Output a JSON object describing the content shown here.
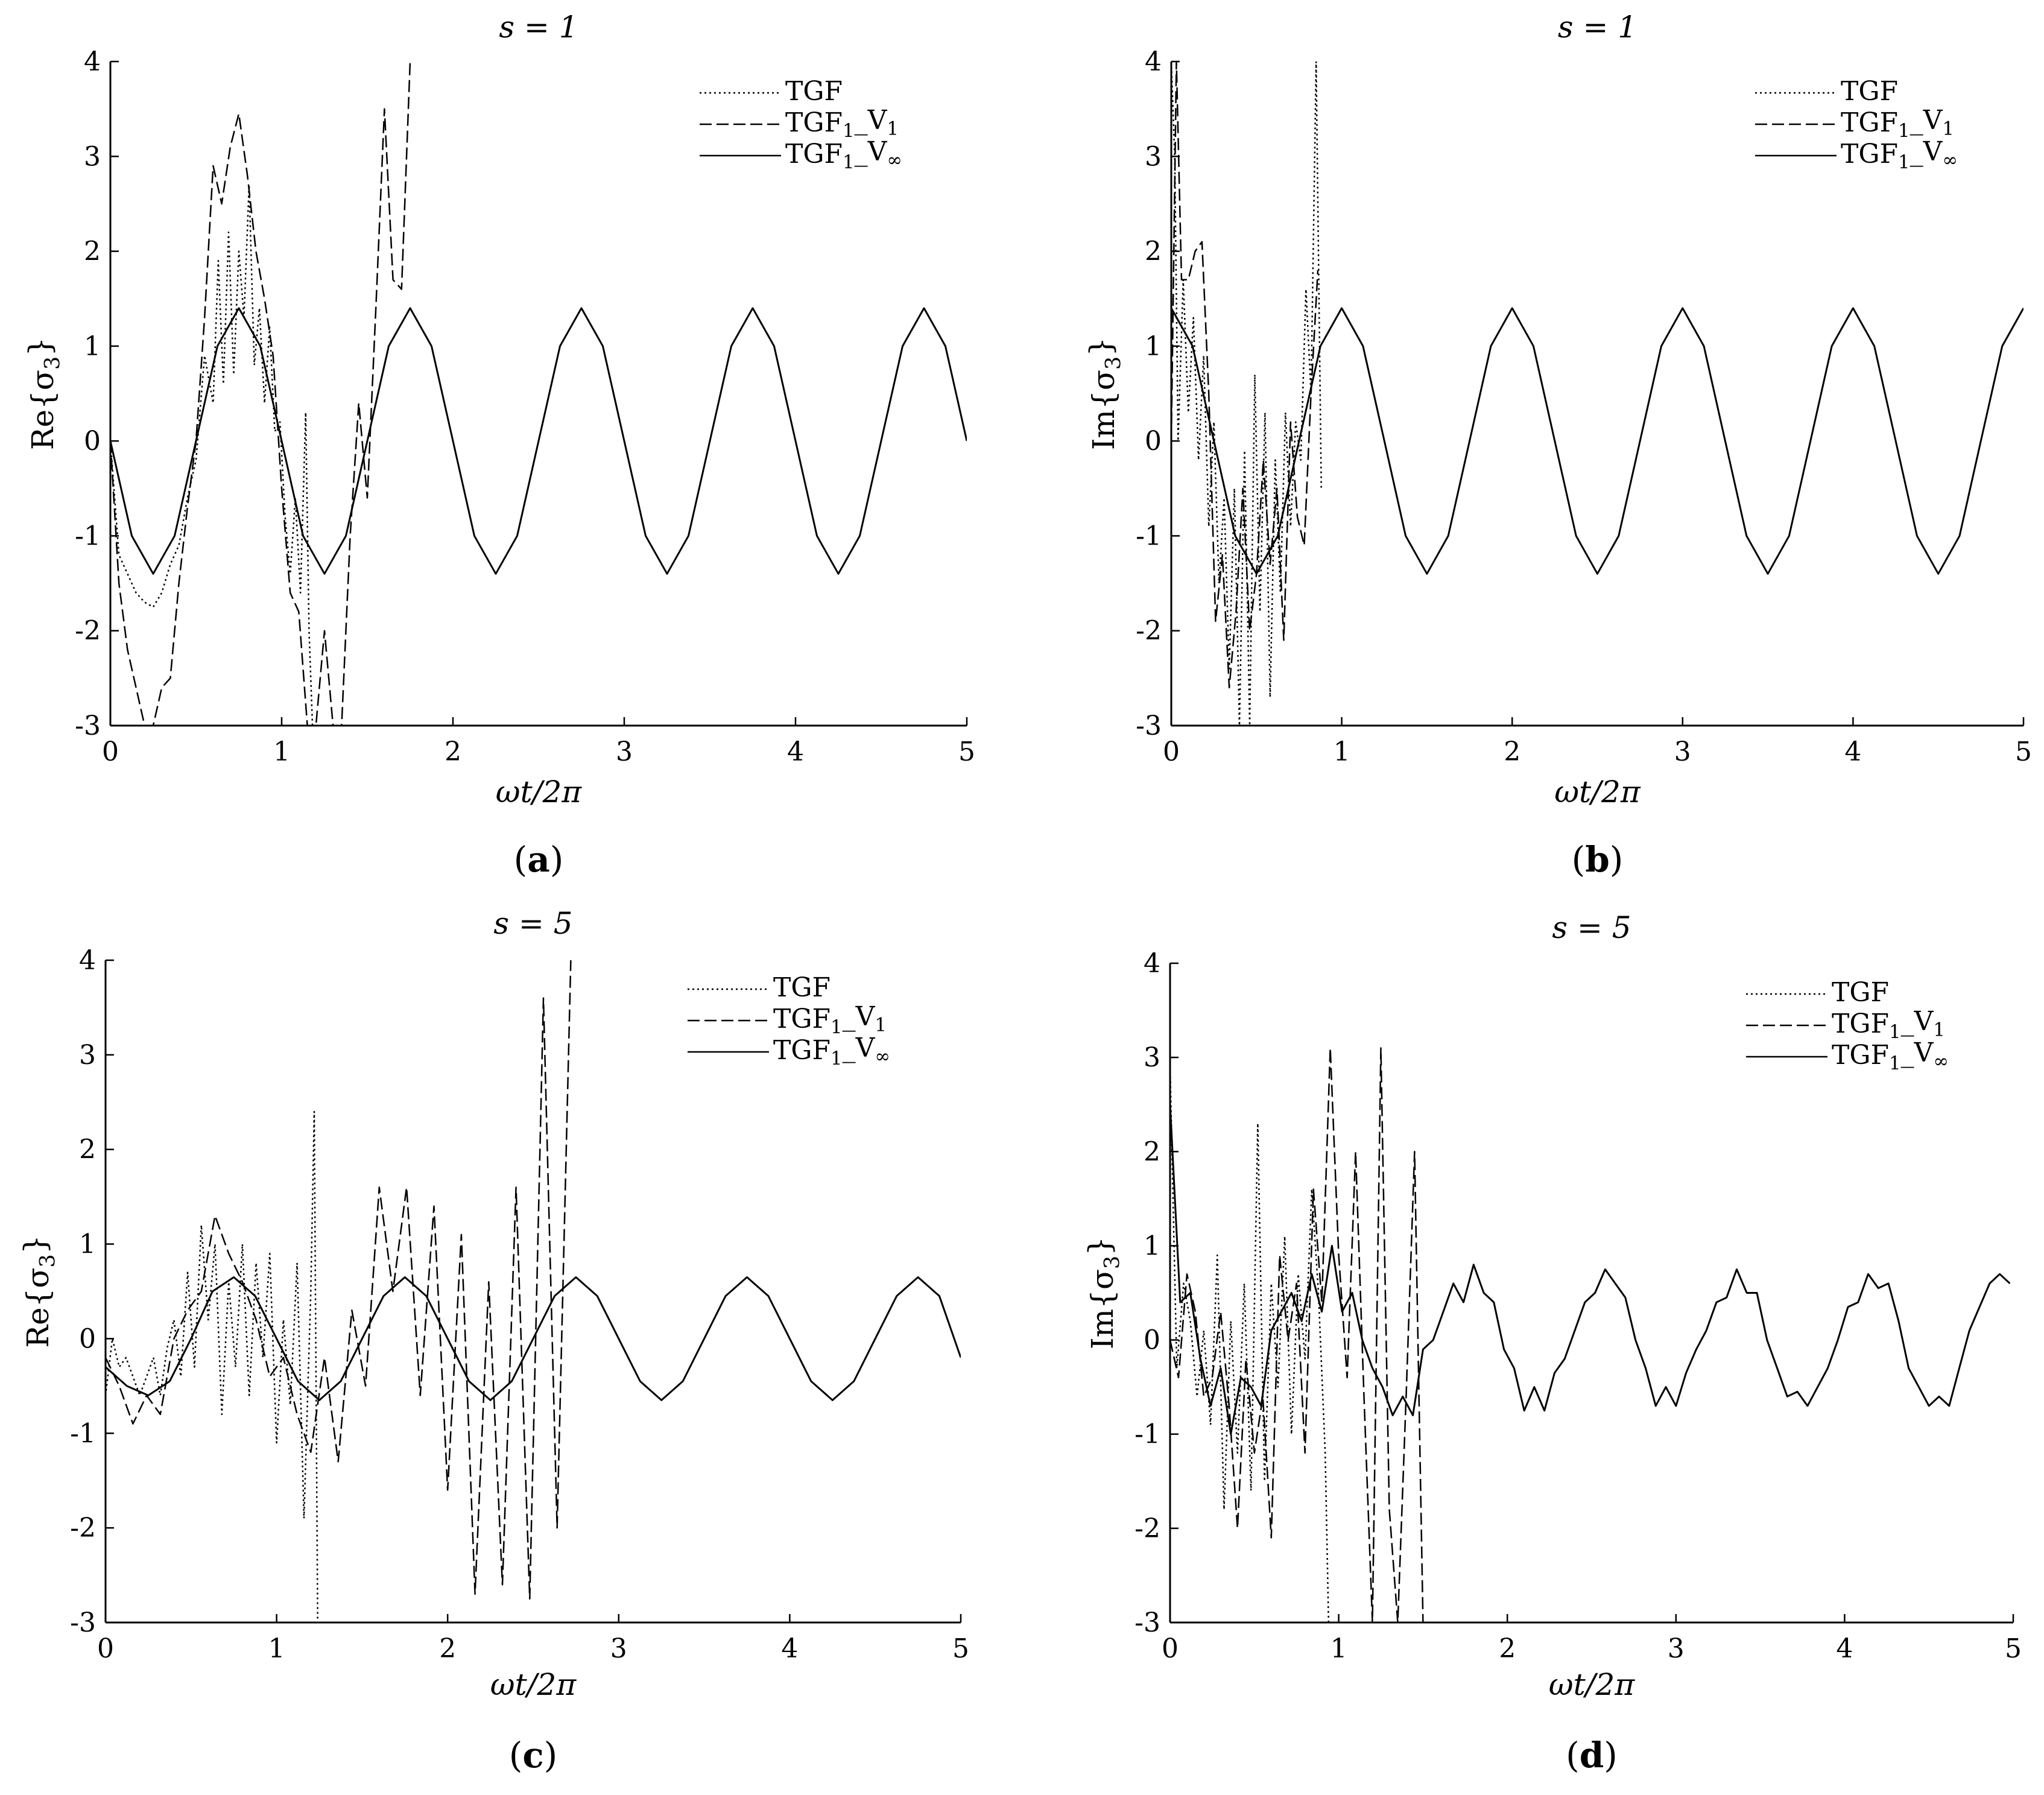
{
  "chart_data": [
    {
      "type": "line",
      "panel_label": "(a)",
      "panel_letter": "a",
      "title": "s = 1",
      "xlabel": "ωt/2π",
      "ylabel": "Re{σ3}",
      "xlim": [
        0,
        5
      ],
      "ylim": [
        -3,
        4
      ],
      "xticks": [
        "0",
        "1",
        "2",
        "3",
        "4",
        "5"
      ],
      "yticks": [
        "-3",
        "-2",
        "-1",
        "0",
        "1",
        "2",
        "3",
        "4"
      ],
      "legend_position": "top-right",
      "series": [
        {
          "name": "TGF",
          "style": "dotted",
          "x": [
            0.0,
            0.05,
            0.1,
            0.15,
            0.2,
            0.25,
            0.3,
            0.35,
            0.4,
            0.45,
            0.5,
            0.55,
            0.6,
            0.63,
            0.66,
            0.69,
            0.72,
            0.75,
            0.78,
            0.81,
            0.84,
            0.87,
            0.9,
            0.93,
            0.96,
            0.99,
            1.02,
            1.05,
            1.08,
            1.11,
            1.14,
            1.16,
            1.18
          ],
          "y": [
            0.0,
            -1.2,
            -1.4,
            -1.6,
            -1.7,
            -1.75,
            -1.6,
            -1.3,
            -1.1,
            -0.6,
            -0.2,
            0.9,
            0.4,
            1.9,
            0.6,
            2.2,
            0.7,
            2.0,
            1.3,
            2.7,
            0.8,
            1.4,
            0.4,
            1.2,
            0.1,
            0.2,
            -0.8,
            -1.4,
            -0.6,
            -1.6,
            0.3,
            -2.0,
            -3.0
          ]
        },
        {
          "name": "TGF1_V1",
          "style": "dashed",
          "x": [
            0.0,
            0.05,
            0.1,
            0.15,
            0.2,
            0.25,
            0.3,
            0.35,
            0.4,
            0.45,
            0.5,
            0.55,
            0.6,
            0.65,
            0.7,
            0.75,
            0.8,
            0.85,
            0.9,
            0.95,
            1.0,
            1.05,
            1.1,
            1.15,
            1.2,
            1.25,
            1.3,
            1.35,
            1.4,
            1.45,
            1.5,
            1.55,
            1.6,
            1.65,
            1.7,
            1.75
          ],
          "y": [
            0.0,
            -1.5,
            -2.2,
            -2.6,
            -3.0,
            -3.0,
            -2.6,
            -2.5,
            -1.5,
            -0.7,
            0.0,
            1.3,
            2.9,
            2.5,
            3.1,
            3.45,
            2.8,
            2.0,
            1.5,
            0.9,
            -0.5,
            -1.6,
            -1.8,
            -3.0,
            -3.0,
            -2.0,
            -3.0,
            -3.0,
            -1.0,
            0.4,
            -0.6,
            1.4,
            3.5,
            1.7,
            1.6,
            4.0
          ]
        },
        {
          "name": "TGF1_V∞",
          "style": "solid",
          "x": [
            0.0,
            0.125,
            0.25,
            0.375,
            0.5,
            0.625,
            0.75,
            0.875,
            1.0,
            1.125,
            1.25,
            1.375,
            1.5,
            1.625,
            1.75,
            1.875,
            2.0,
            2.125,
            2.25,
            2.375,
            2.5,
            2.625,
            2.75,
            2.875,
            3.0,
            3.125,
            3.25,
            3.375,
            3.5,
            3.625,
            3.75,
            3.875,
            4.0,
            4.125,
            4.25,
            4.375,
            4.5,
            4.625,
            4.75,
            4.875,
            5.0
          ],
          "y": [
            0.0,
            -1.0,
            -1.4,
            -1.0,
            0.0,
            1.0,
            1.4,
            1.0,
            0.0,
            -1.0,
            -1.4,
            -1.0,
            0.0,
            1.0,
            1.4,
            1.0,
            0.0,
            -1.0,
            -1.4,
            -1.0,
            0.0,
            1.0,
            1.4,
            1.0,
            0.0,
            -1.0,
            -1.4,
            -1.0,
            0.0,
            1.0,
            1.4,
            1.0,
            0.0,
            -1.0,
            -1.4,
            -1.0,
            0.0,
            1.0,
            1.4,
            1.0,
            0.0
          ]
        }
      ]
    },
    {
      "type": "line",
      "panel_label": "(b)",
      "panel_letter": "b",
      "title": "s = 1",
      "xlabel": "ωt/2π",
      "ylabel": "Im{σ3}",
      "xlim": [
        0,
        5
      ],
      "ylim": [
        -3,
        4
      ],
      "xticks": [
        "0",
        "1",
        "2",
        "3",
        "4",
        "5"
      ],
      "yticks": [
        "-3",
        "-2",
        "-1",
        "0",
        "1",
        "2",
        "3",
        "4"
      ],
      "legend_position": "top-right",
      "series": [
        {
          "name": "TGF",
          "style": "dotted",
          "x": [
            0.0,
            0.02,
            0.04,
            0.07,
            0.1,
            0.13,
            0.16,
            0.19,
            0.22,
            0.25,
            0.28,
            0.31,
            0.34,
            0.37,
            0.4,
            0.43,
            0.46,
            0.49,
            0.52,
            0.55,
            0.58,
            0.61,
            0.64,
            0.67,
            0.7,
            0.73,
            0.76,
            0.79,
            0.82,
            0.85,
            0.88
          ],
          "y": [
            4.0,
            3.0,
            0.0,
            1.7,
            0.3,
            1.3,
            -0.2,
            0.9,
            -0.9,
            0.2,
            -1.5,
            -0.6,
            -2.4,
            -0.5,
            -3.0,
            -0.1,
            -3.0,
            0.7,
            -1.8,
            0.3,
            -2.7,
            -0.2,
            -1.6,
            0.3,
            -0.9,
            0.2,
            -0.2,
            1.6,
            0.5,
            4.0,
            -0.5
          ]
        },
        {
          "name": "TGF1_V1",
          "style": "dashed",
          "x": [
            0.0,
            0.03,
            0.06,
            0.1,
            0.14,
            0.18,
            0.22,
            0.26,
            0.3,
            0.34,
            0.38,
            0.42,
            0.46,
            0.5,
            0.54,
            0.58,
            0.62,
            0.66,
            0.7,
            0.74,
            0.78,
            0.82,
            0.86
          ],
          "y": [
            0.0,
            4.0,
            1.7,
            1.7,
            2.0,
            2.1,
            0.5,
            -1.9,
            -1.2,
            -2.6,
            -1.8,
            -0.5,
            -2.0,
            -1.4,
            -0.2,
            -1.3,
            -0.5,
            -2.1,
            0.2,
            -0.8,
            -1.1,
            0.5,
            1.8
          ]
        },
        {
          "name": "TGF1_V∞",
          "style": "solid",
          "x": [
            0.0,
            0.125,
            0.25,
            0.375,
            0.5,
            0.625,
            0.75,
            0.875,
            1.0,
            1.125,
            1.25,
            1.375,
            1.5,
            1.625,
            1.75,
            1.875,
            2.0,
            2.125,
            2.25,
            2.375,
            2.5,
            2.625,
            2.75,
            2.875,
            3.0,
            3.125,
            3.25,
            3.375,
            3.5,
            3.625,
            3.75,
            3.875,
            4.0,
            4.125,
            4.25,
            4.375,
            4.5,
            4.625,
            4.75,
            4.875,
            5.0
          ],
          "y": [
            1.4,
            1.0,
            0.0,
            -1.0,
            -1.4,
            -1.0,
            0.0,
            1.0,
            1.4,
            1.0,
            0.0,
            -1.0,
            -1.4,
            -1.0,
            0.0,
            1.0,
            1.4,
            1.0,
            0.0,
            -1.0,
            -1.4,
            -1.0,
            0.0,
            1.0,
            1.4,
            1.0,
            0.0,
            -1.0,
            -1.4,
            -1.0,
            0.0,
            1.0,
            1.4,
            1.0,
            0.0,
            -1.0,
            -1.4,
            -1.0,
            0.0,
            1.0,
            1.4
          ]
        }
      ]
    },
    {
      "type": "line",
      "panel_label": "(c)",
      "panel_letter": "c",
      "title": "s = 5",
      "xlabel": "ωt/2π",
      "ylabel": "Re{σ3}",
      "xlim": [
        0,
        5
      ],
      "ylim": [
        -3,
        4
      ],
      "xticks": [
        "0",
        "1",
        "2",
        "3",
        "4",
        "5"
      ],
      "yticks": [
        "-3",
        "-2",
        "-1",
        "0",
        "1",
        "2",
        "3",
        "4"
      ],
      "legend_position": "top-right",
      "series": [
        {
          "name": "TGF",
          "style": "dotted",
          "x": [
            0.0,
            0.04,
            0.08,
            0.12,
            0.16,
            0.2,
            0.24,
            0.28,
            0.32,
            0.36,
            0.4,
            0.44,
            0.48,
            0.52,
            0.56,
            0.6,
            0.64,
            0.68,
            0.72,
            0.76,
            0.8,
            0.84,
            0.88,
            0.92,
            0.96,
            1.0,
            1.04,
            1.08,
            1.12,
            1.16,
            1.2,
            1.22,
            1.24
          ],
          "y": [
            -0.6,
            0.0,
            -0.3,
            -0.2,
            -0.4,
            -0.6,
            -0.4,
            -0.2,
            -0.6,
            -0.1,
            0.2,
            -0.4,
            0.7,
            -0.3,
            1.2,
            0.2,
            1.0,
            -0.8,
            0.6,
            -0.3,
            1.0,
            -0.6,
            0.8,
            -0.2,
            0.9,
            -1.1,
            0.2,
            -0.7,
            0.8,
            -1.9,
            0.5,
            2.4,
            -3.0
          ]
        },
        {
          "name": "TGF1_V1",
          "style": "dashed",
          "x": [
            0.0,
            0.08,
            0.16,
            0.24,
            0.32,
            0.4,
            0.48,
            0.56,
            0.64,
            0.72,
            0.8,
            0.88,
            0.96,
            1.04,
            1.12,
            1.2,
            1.28,
            1.36,
            1.44,
            1.52,
            1.6,
            1.68,
            1.76,
            1.84,
            1.92,
            2.0,
            2.08,
            2.16,
            2.24,
            2.32,
            2.4,
            2.48,
            2.56,
            2.64,
            2.72
          ],
          "y": [
            -0.2,
            -0.5,
            -0.9,
            -0.6,
            -0.8,
            0.0,
            0.3,
            0.5,
            1.3,
            0.9,
            0.6,
            0.2,
            -0.4,
            -0.2,
            -0.8,
            -1.2,
            -0.2,
            -1.3,
            0.3,
            -0.5,
            1.6,
            0.5,
            1.6,
            -0.6,
            1.4,
            -1.6,
            1.1,
            -2.7,
            0.6,
            -2.6,
            1.6,
            -2.75,
            3.6,
            -2.0,
            4.0
          ]
        },
        {
          "name": "TGF1_V∞",
          "style": "solid",
          "x": [
            0.0,
            0.125,
            0.25,
            0.375,
            0.5,
            0.625,
            0.75,
            0.875,
            1.0,
            1.125,
            1.25,
            1.375,
            1.5,
            1.625,
            1.75,
            1.875,
            2.0,
            2.125,
            2.25,
            2.375,
            2.5,
            2.625,
            2.75,
            2.875,
            3.0,
            3.125,
            3.25,
            3.375,
            3.5,
            3.625,
            3.75,
            3.875,
            4.0,
            4.125,
            4.25,
            4.375,
            4.5,
            4.625,
            4.75,
            4.875,
            5.0
          ],
          "y": [
            -0.3,
            -0.5,
            -0.6,
            -0.45,
            0.0,
            0.5,
            0.65,
            0.45,
            0.0,
            -0.45,
            -0.65,
            -0.45,
            0.0,
            0.45,
            0.65,
            0.45,
            0.0,
            -0.45,
            -0.65,
            -0.45,
            0.0,
            0.45,
            0.65,
            0.45,
            0.0,
            -0.45,
            -0.65,
            -0.45,
            0.0,
            0.45,
            0.65,
            0.45,
            0.0,
            -0.45,
            -0.65,
            -0.45,
            0.0,
            0.45,
            0.65,
            0.45,
            -0.2
          ]
        }
      ]
    },
    {
      "type": "line",
      "panel_label": "(d)",
      "panel_letter": "d",
      "title": "s = 5",
      "xlabel": "ωt/2π",
      "ylabel": "Im{σ3}",
      "xlim": [
        0,
        5
      ],
      "ylim": [
        -3,
        4
      ],
      "xticks": [
        "0",
        "1",
        "2",
        "3",
        "4",
        "5"
      ],
      "yticks": [
        "-3",
        "-2",
        "-1",
        "0",
        "1",
        "2",
        "3",
        "4"
      ],
      "legend_position": "top-right",
      "series": [
        {
          "name": "TGF",
          "style": "dotted",
          "x": [
            0.0,
            0.04,
            0.08,
            0.12,
            0.16,
            0.2,
            0.24,
            0.28,
            0.32,
            0.36,
            0.4,
            0.44,
            0.48,
            0.52,
            0.56,
            0.6,
            0.64,
            0.68,
            0.72,
            0.76,
            0.8,
            0.84,
            0.88,
            0.92,
            0.94
          ],
          "y": [
            2.9,
            -0.3,
            0.6,
            0.2,
            -0.6,
            0.1,
            -0.9,
            0.9,
            -1.8,
            0.2,
            -1.2,
            0.6,
            -1.6,
            2.3,
            -1.5,
            0.6,
            -0.5,
            1.1,
            -1.0,
            0.7,
            -0.2,
            1.6,
            0.5,
            -1.2,
            -3.0
          ]
        },
        {
          "name": "TGF1_V1",
          "style": "dashed",
          "x": [
            0.0,
            0.05,
            0.1,
            0.15,
            0.2,
            0.25,
            0.3,
            0.35,
            0.4,
            0.45,
            0.5,
            0.55,
            0.6,
            0.65,
            0.7,
            0.75,
            0.8,
            0.85,
            0.9,
            0.95,
            1.0,
            1.05,
            1.1,
            1.15,
            1.2,
            1.25,
            1.3,
            1.35,
            1.4,
            1.45,
            1.5,
            1.54
          ],
          "y": [
            0.0,
            -0.4,
            0.7,
            0.3,
            -0.6,
            -0.4,
            0.3,
            -0.7,
            -2.0,
            -0.2,
            -1.2,
            -0.6,
            -2.1,
            0.9,
            0.0,
            0.6,
            -1.2,
            1.6,
            0.4,
            3.1,
            0.9,
            -0.4,
            2.0,
            -0.6,
            -3.0,
            3.1,
            -1.8,
            -3.0,
            -0.6,
            2.0,
            -3.0,
            -3.0
          ]
        },
        {
          "name": "TGF1_V∞",
          "style": "solid",
          "x": [
            0.0,
            0.06,
            0.12,
            0.18,
            0.24,
            0.3,
            0.36,
            0.42,
            0.48,
            0.54,
            0.6,
            0.66,
            0.72,
            0.78,
            0.84,
            0.9,
            0.96,
            1.02,
            1.08,
            1.14,
            1.2,
            1.26,
            1.32,
            1.38,
            1.44,
            1.5,
            1.56,
            1.62,
            1.68,
            1.74,
            1.8,
            1.86,
            1.92,
            1.98,
            2.04,
            2.1,
            2.16,
            2.22,
            2.28,
            2.34,
            2.4,
            2.46,
            2.52,
            2.58,
            2.64,
            2.7,
            2.76,
            2.82,
            2.88,
            2.94,
            3.0,
            3.06,
            3.12,
            3.18,
            3.24,
            3.3,
            3.36,
            3.42,
            3.48,
            3.54,
            3.6,
            3.66,
            3.72,
            3.78,
            3.84,
            3.9,
            3.96,
            4.02,
            4.08,
            4.14,
            4.2,
            4.26,
            4.32,
            4.38,
            4.44,
            4.5,
            4.56,
            4.62,
            4.68,
            4.74,
            4.8,
            4.86,
            4.92,
            4.98
          ],
          "y": [
            2.5,
            0.4,
            0.5,
            -0.2,
            -0.7,
            -0.3,
            -1.0,
            -0.4,
            -0.5,
            -0.7,
            0.1,
            0.3,
            0.5,
            0.2,
            0.7,
            0.3,
            1.0,
            0.3,
            0.5,
            0.0,
            -0.3,
            -0.5,
            -0.8,
            -0.6,
            -0.8,
            -0.1,
            0.0,
            0.3,
            0.6,
            0.4,
            0.8,
            0.5,
            0.4,
            -0.1,
            -0.3,
            -0.75,
            -0.5,
            -0.75,
            -0.35,
            -0.2,
            0.1,
            0.4,
            0.5,
            0.75,
            0.6,
            0.45,
            0.0,
            -0.3,
            -0.7,
            -0.5,
            -0.7,
            -0.35,
            -0.1,
            0.1,
            0.4,
            0.45,
            0.75,
            0.5,
            0.5,
            0.0,
            -0.3,
            -0.6,
            -0.55,
            -0.7,
            -0.5,
            -0.3,
            0.0,
            0.35,
            0.4,
            0.7,
            0.55,
            0.6,
            0.2,
            -0.3,
            -0.5,
            -0.7,
            -0.6,
            -0.7,
            -0.3,
            0.1,
            0.35,
            0.6,
            0.7,
            0.6
          ]
        }
      ]
    }
  ]
}
